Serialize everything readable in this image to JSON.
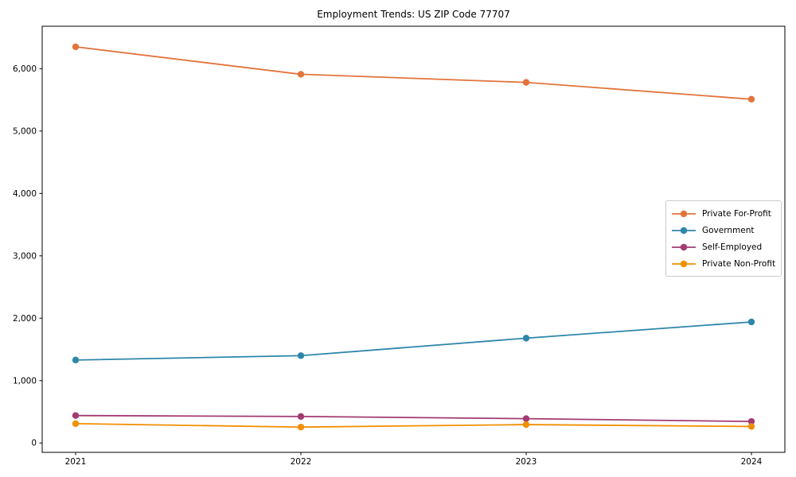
{
  "title": "Employment Trends: US ZIP Code 77707",
  "chart_data": {
    "type": "line",
    "title": "Employment Trends: US ZIP Code 77707",
    "categories": [
      "2021",
      "2022",
      "2023",
      "2024"
    ],
    "x": [
      2021,
      2022,
      2023,
      2024
    ],
    "series": [
      {
        "name": "Private For-Profit",
        "color": "#E2743C",
        "values": [
          6350,
          5910,
          5780,
          5510
        ]
      },
      {
        "name": "Government",
        "color": "#2E86AB",
        "values": [
          1330,
          1400,
          1680,
          1940
        ]
      },
      {
        "name": "Self-Employed",
        "color": "#A23B72",
        "values": [
          440,
          425,
          390,
          345
        ]
      },
      {
        "name": "Private Non-Profit",
        "color": "#F18F01",
        "values": [
          310,
          255,
          295,
          265
        ]
      }
    ],
    "xlabel": "",
    "ylabel": "",
    "ylim": [
      -150,
      6680
    ],
    "yticks": [
      0,
      1000,
      2000,
      3000,
      4000,
      5000,
      6000
    ],
    "ytick_labels": [
      "0",
      "1,000",
      "2,000",
      "3,000",
      "4,000",
      "5,000",
      "6,000"
    ],
    "grid": false,
    "legend_position": "center right",
    "marker": "circle",
    "line_width": 1.8
  }
}
